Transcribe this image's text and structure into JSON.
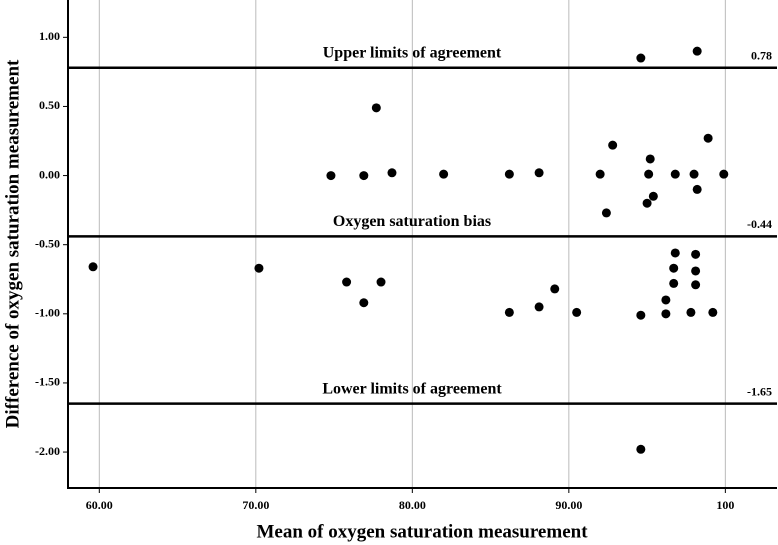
{
  "chart_data": {
    "type": "scatter",
    "xlabel": "Mean of oxygen saturation measurement",
    "ylabel": "Difference of oxygen saturation measurement",
    "xlim": [
      58,
      103.3
    ],
    "ylim": [
      -2.26,
      1.27
    ],
    "xticks": [
      {
        "value": 60,
        "label": "60.00"
      },
      {
        "value": 70,
        "label": "70.00"
      },
      {
        "value": 80,
        "label": "80.00"
      },
      {
        "value": 90,
        "label": "90.00"
      },
      100
    ],
    "yticks": [
      {
        "value": 1,
        "label": "1.00"
      },
      {
        "value": 0.5,
        "label": "0.50"
      },
      {
        "value": 0,
        "label": "0.00"
      },
      {
        "value": -0.5,
        "label": "-0.50"
      },
      {
        "value": -1,
        "label": "-1.00"
      },
      {
        "value": -1.5,
        "label": "-1.50"
      },
      {
        "value": -2,
        "label": "-2.00"
      }
    ],
    "grid": "x",
    "color": "#000000",
    "reference_lines": [
      {
        "label": "Upper limits of agreement",
        "value": 0.78
      },
      {
        "label": "Oxygen saturation bias",
        "value": -0.44
      },
      {
        "label": "Lower limits of agreement",
        "value": -1.65
      }
    ],
    "x": [
      94.6,
      98.2,
      77.7,
      92.8,
      98.9,
      74.8,
      76.9,
      78.7,
      82.0,
      86.2,
      88.1,
      92.0,
      95.2,
      95.1,
      96.8,
      98.0,
      99.9,
      95.4,
      98.2,
      95.0,
      92.4,
      59.6,
      70.2,
      75.8,
      78.0,
      76.9,
      89.1,
      86.2,
      88.1,
      90.5,
      94.6,
      96.8,
      98.1,
      96.7,
      98.1,
      96.7,
      98.1,
      96.2,
      96.2,
      97.8,
      99.2,
      94.6
    ],
    "y": [
      0.85,
      0.9,
      0.49,
      0.22,
      0.27,
      0.0,
      0.0,
      0.02,
      0.01,
      0.01,
      0.02,
      0.01,
      0.12,
      0.01,
      0.01,
      0.01,
      0.01,
      -0.15,
      -0.1,
      -0.2,
      -0.27,
      -0.66,
      -0.67,
      -0.77,
      -0.77,
      -0.92,
      -0.82,
      -0.99,
      -0.95,
      -0.99,
      -1.01,
      -0.56,
      -0.57,
      -0.67,
      -0.69,
      -0.78,
      -0.79,
      -0.9,
      -1.0,
      -0.99,
      -0.99,
      -1.98
    ]
  }
}
